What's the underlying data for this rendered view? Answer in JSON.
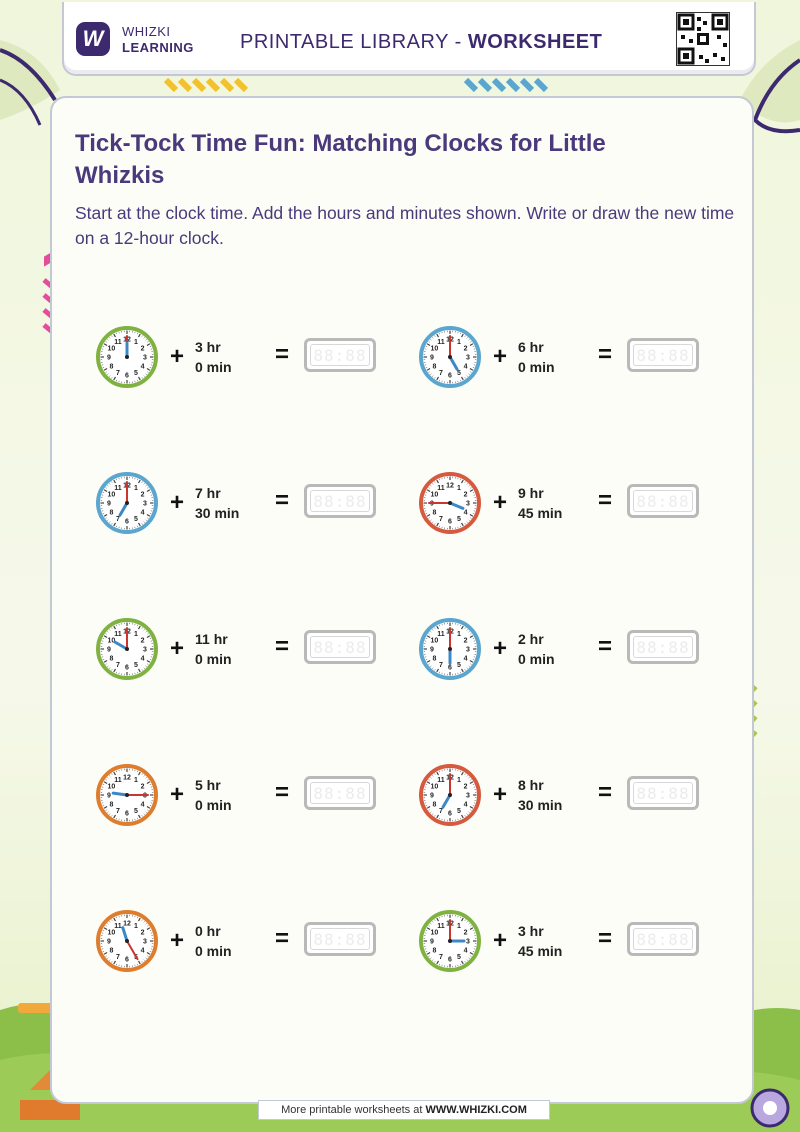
{
  "header": {
    "logo_mark": "W",
    "logo_line1": "WHIZKI",
    "logo_line2": "LEARNING",
    "title_prefix": "PRINTABLE LIBRARY - ",
    "title_bold": "WORKSHEET"
  },
  "title": "Tick-Tock Time Fun: Matching Clocks for Little Whizkis",
  "subtitle": "Start at the clock time. Add the hours and minutes shown. Write or draw the new time on a 12-hour clock.",
  "colors": {
    "accent_purple": "#4a3a7c",
    "clock_green": "#7fb241",
    "clock_blue": "#5aa6cf",
    "clock_red": "#d55a3e",
    "clock_orange": "#de7d2d",
    "hand_red": "#c8362f",
    "hand_blue": "#3c88c6"
  },
  "problems": [
    {
      "clock_color": "green",
      "start_hour": 12,
      "start_minute": 0,
      "add_hours": "3 hr",
      "add_minutes": "0 min"
    },
    {
      "clock_color": "blue",
      "start_hour": 5,
      "start_minute": 0,
      "add_hours": "6 hr",
      "add_minutes": "0 min"
    },
    {
      "clock_color": "blue",
      "start_hour": 7,
      "start_minute": 0,
      "add_hours": "7 hr",
      "add_minutes": "30 min"
    },
    {
      "clock_color": "red",
      "start_hour": 3,
      "start_minute": 45,
      "add_hours": "9 hr",
      "add_minutes": "45 min"
    },
    {
      "clock_color": "green",
      "start_hour": 10,
      "start_minute": 0,
      "add_hours": "11 hr",
      "add_minutes": "0 min"
    },
    {
      "clock_color": "blue",
      "start_hour": 6,
      "start_minute": 0,
      "add_hours": "2 hr",
      "add_minutes": "0 min"
    },
    {
      "clock_color": "orange",
      "start_hour": 9,
      "start_minute": 15,
      "add_hours": "5 hr",
      "add_minutes": "0 min"
    },
    {
      "clock_color": "red",
      "start_hour": 7,
      "start_minute": 0,
      "add_hours": "8 hr",
      "add_minutes": "30 min"
    },
    {
      "clock_color": "orange",
      "start_hour": 11,
      "start_minute": 25,
      "add_hours": "0 hr",
      "add_minutes": "0 min"
    },
    {
      "clock_color": "green",
      "start_hour": 3,
      "start_minute": 0,
      "add_hours": "3 hr",
      "add_minutes": "45 min"
    }
  ],
  "symbols": {
    "plus": "+",
    "equals": "="
  },
  "digital_placeholder": "88:88",
  "clock_numbers": [
    "12",
    "1",
    "2",
    "3",
    "4",
    "5",
    "6",
    "7",
    "8",
    "9",
    "10",
    "11"
  ],
  "footer": {
    "text": "More printable worksheets at ",
    "url": "WWW.WHIZKI.COM"
  }
}
